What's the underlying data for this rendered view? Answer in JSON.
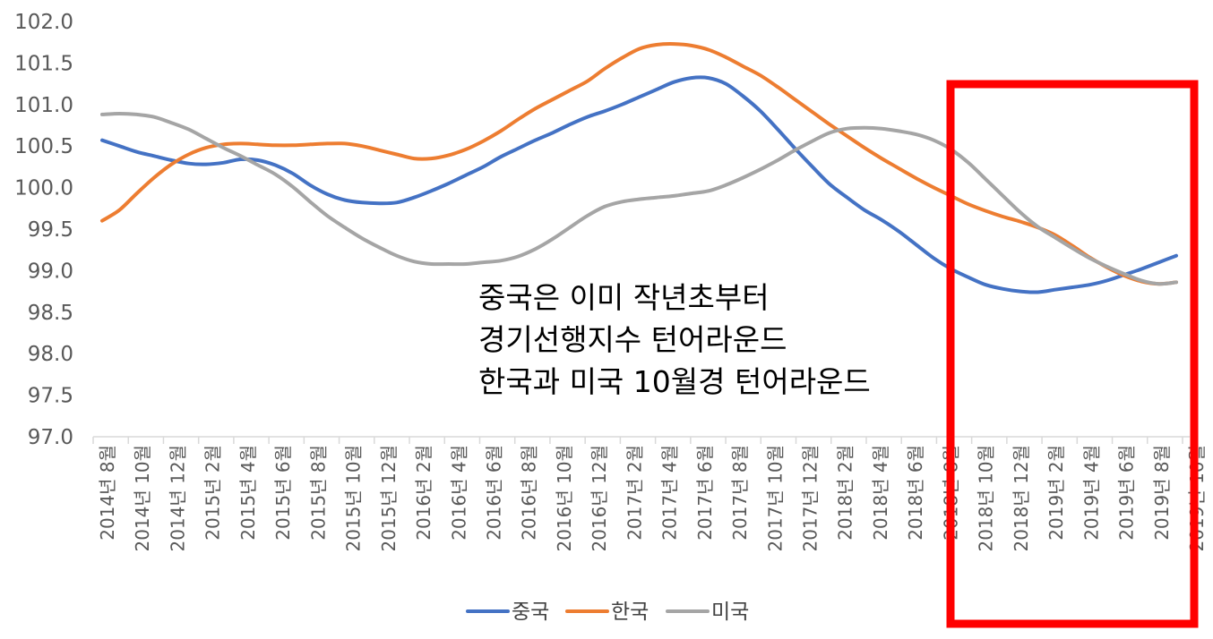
{
  "chart_data": {
    "type": "line",
    "title": "",
    "xlabel": "",
    "ylabel": "",
    "ylim": [
      97.0,
      102.0
    ],
    "yticks": [
      "97.0",
      "97.5",
      "98.0",
      "98.5",
      "99.0",
      "99.5",
      "100.0",
      "100.5",
      "101.0",
      "101.5",
      "102.0"
    ],
    "x": [
      "2014-08",
      "2014-09",
      "2014-10",
      "2014-11",
      "2014-12",
      "2015-01",
      "2015-02",
      "2015-03",
      "2015-04",
      "2015-05",
      "2015-06",
      "2015-07",
      "2015-08",
      "2015-09",
      "2015-10",
      "2015-11",
      "2015-12",
      "2016-01",
      "2016-02",
      "2016-03",
      "2016-04",
      "2016-05",
      "2016-06",
      "2016-07",
      "2016-08",
      "2016-09",
      "2016-10",
      "2016-11",
      "2016-12",
      "2017-01",
      "2017-02",
      "2017-03",
      "2017-04",
      "2017-05",
      "2017-06",
      "2017-07",
      "2017-08",
      "2017-09",
      "2017-10",
      "2017-11",
      "2017-12",
      "2018-01",
      "2018-02",
      "2018-03",
      "2018-04",
      "2018-05",
      "2018-06",
      "2018-07",
      "2018-08",
      "2018-09",
      "2018-10",
      "2018-11",
      "2018-12",
      "2019-01",
      "2019-02",
      "2019-03",
      "2019-04",
      "2019-05",
      "2019-06",
      "2019-07",
      "2019-08",
      "2019-09",
      "2019-10"
    ],
    "tick_labels": [
      "2014년 8월",
      "2014년 10월",
      "2014년 12월",
      "2015년 2월",
      "2015년 4월",
      "2015년 6월",
      "2015년 8월",
      "2015년 10월",
      "2015년 12월",
      "2016년 2월",
      "2016년 4월",
      "2016년 6월",
      "2016년 8월",
      "2016년 10월",
      "2016년 12월",
      "2017년 2월",
      "2017년 4월",
      "2017년 6월",
      "2017년 8월",
      "2017년 10월",
      "2017년 12월",
      "2018년 2월",
      "2018년 4월",
      "2018년 6월",
      "2018년 8월",
      "2018년 10월",
      "2018년 12월",
      "2019년 2월",
      "2019년 4월",
      "2019년 6월",
      "2019년 8월",
      "2019년 10월"
    ],
    "series": [
      {
        "name": "중국",
        "color": "#4472c4",
        "values": [
          100.57,
          100.5,
          100.43,
          100.38,
          100.33,
          100.29,
          100.28,
          100.3,
          100.34,
          100.33,
          100.27,
          100.17,
          100.03,
          99.92,
          99.85,
          99.82,
          99.81,
          99.82,
          99.88,
          99.96,
          100.05,
          100.15,
          100.25,
          100.37,
          100.47,
          100.57,
          100.66,
          100.76,
          100.85,
          100.92,
          101.0,
          101.09,
          101.18,
          101.27,
          101.32,
          101.32,
          101.25,
          101.1,
          100.92,
          100.7,
          100.47,
          100.25,
          100.04,
          99.88,
          99.73,
          99.61,
          99.47,
          99.31,
          99.15,
          99.02,
          98.92,
          98.83,
          98.78,
          98.75,
          98.74,
          98.77,
          98.8,
          98.83,
          98.88,
          98.95,
          99.02,
          99.1,
          99.18
        ]
      },
      {
        "name": "한국",
        "color": "#ed7d31",
        "values": [
          99.6,
          99.73,
          99.93,
          100.12,
          100.28,
          100.4,
          100.48,
          100.52,
          100.53,
          100.52,
          100.51,
          100.51,
          100.52,
          100.53,
          100.53,
          100.5,
          100.45,
          100.4,
          100.35,
          100.35,
          100.39,
          100.46,
          100.56,
          100.68,
          100.82,
          100.95,
          101.06,
          101.17,
          101.28,
          101.43,
          101.56,
          101.67,
          101.72,
          101.73,
          101.71,
          101.66,
          101.57,
          101.46,
          101.35,
          101.21,
          101.06,
          100.91,
          100.76,
          100.62,
          100.48,
          100.35,
          100.23,
          100.11,
          100.0,
          99.9,
          99.8,
          99.72,
          99.65,
          99.59,
          99.52,
          99.43,
          99.3,
          99.16,
          99.04,
          98.94,
          98.87,
          98.84,
          98.86
        ]
      },
      {
        "name": "미국",
        "color": "#a5a5a5",
        "values": [
          100.88,
          100.89,
          100.88,
          100.85,
          100.78,
          100.7,
          100.59,
          100.48,
          100.38,
          100.27,
          100.16,
          100.01,
          99.83,
          99.66,
          99.52,
          99.39,
          99.28,
          99.18,
          99.11,
          99.08,
          99.08,
          99.08,
          99.1,
          99.12,
          99.17,
          99.26,
          99.38,
          99.52,
          99.66,
          99.77,
          99.83,
          99.86,
          99.88,
          99.9,
          99.93,
          99.96,
          100.03,
          100.12,
          100.22,
          100.33,
          100.45,
          100.56,
          100.66,
          100.71,
          100.72,
          100.71,
          100.68,
          100.64,
          100.57,
          100.46,
          100.3,
          100.1,
          99.9,
          99.7,
          99.53,
          99.4,
          99.27,
          99.15,
          99.05,
          98.96,
          98.88,
          98.84,
          98.86
        ]
      }
    ],
    "legend": {
      "placement": "bottom",
      "items": [
        "중국",
        "한국",
        "미국"
      ]
    },
    "annotation": [
      "중국은 이미 작년초부터",
      "경기선행지수 턴어라운드",
      "한국과 미국 10월경 턴어라운드"
    ],
    "highlight_box": {
      "from": "2018-09",
      "to": "2019-10",
      "color": "#ff0000"
    }
  }
}
